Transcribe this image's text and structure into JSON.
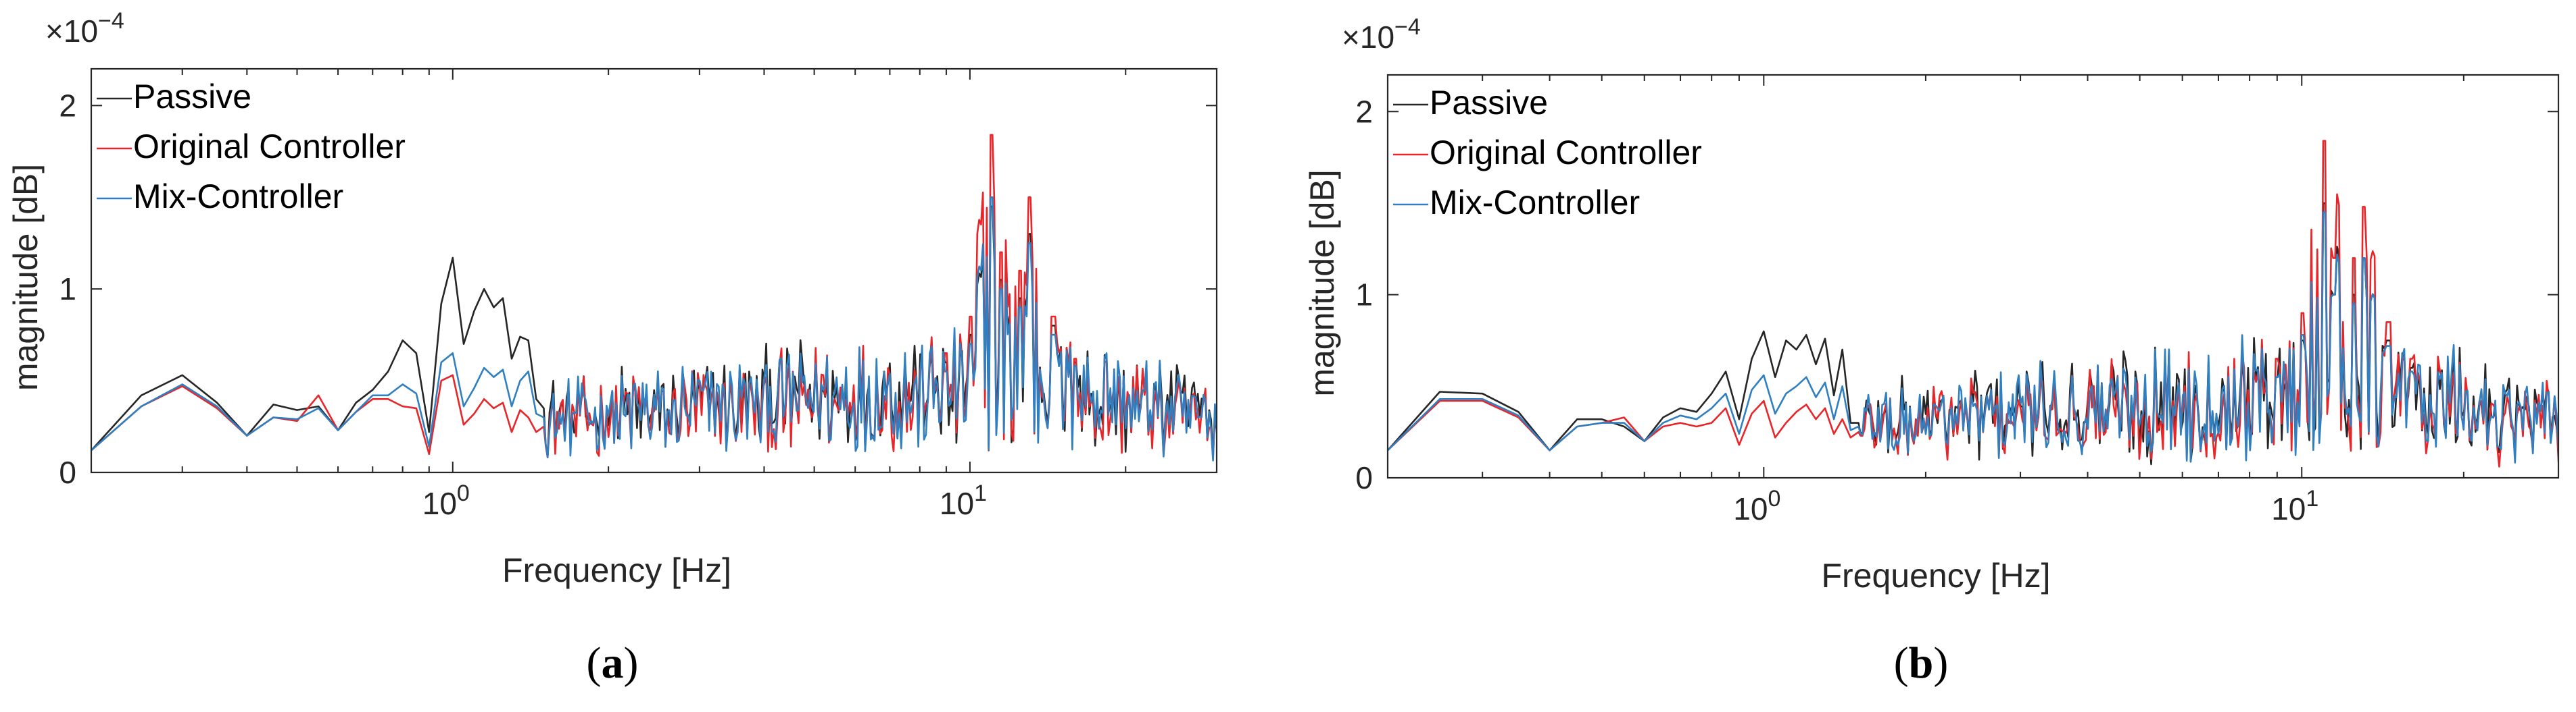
{
  "chart_data": [
    {
      "type": "line",
      "panel": "a",
      "caption_open": "(",
      "caption_letter": "a",
      "caption_close": ")",
      "xscale": "log",
      "xlim": [
        0.2,
        30
      ],
      "ylim": [
        0,
        2.2
      ],
      "y_exponent": "×10",
      "y_exponent_power": "−4",
      "xlabel": "Frequency [Hz]",
      "ylabel": "magnitude [dB]",
      "x_ticks": [
        {
          "value": 1,
          "base": "10",
          "power": "0"
        },
        {
          "value": 10,
          "base": "10",
          "power": "1"
        }
      ],
      "y_ticks": [
        {
          "value": 0,
          "label": "0"
        },
        {
          "value": 1,
          "label": "1"
        },
        {
          "value": 2,
          "label": "2"
        }
      ],
      "legend_position": "top-left",
      "colors": {
        "Passive": "#262626",
        "Original Controller": "#e8262a",
        "Mix-Controller": "#2f7fc1"
      },
      "series": [
        {
          "name": "Passive",
          "low_band": [
            [
              0.2,
              0.12
            ],
            [
              0.25,
              0.42
            ],
            [
              0.3,
              0.53
            ],
            [
              0.35,
              0.38
            ],
            [
              0.4,
              0.2
            ],
            [
              0.45,
              0.37
            ],
            [
              0.5,
              0.34
            ],
            [
              0.55,
              0.36
            ],
            [
              0.6,
              0.23
            ],
            [
              0.65,
              0.38
            ],
            [
              0.7,
              0.45
            ],
            [
              0.75,
              0.55
            ],
            [
              0.8,
              0.72
            ],
            [
              0.85,
              0.65
            ],
            [
              0.9,
              0.22
            ],
            [
              0.95,
              0.92
            ],
            [
              1.0,
              1.17
            ],
            [
              1.05,
              0.7
            ],
            [
              1.1,
              0.88
            ],
            [
              1.15,
              1.0
            ],
            [
              1.2,
              0.9
            ],
            [
              1.25,
              0.95
            ],
            [
              1.3,
              0.62
            ],
            [
              1.35,
              0.74
            ],
            [
              1.4,
              0.72
            ],
            [
              1.45,
              0.4
            ],
            [
              1.5,
              0.35
            ]
          ],
          "high_band_level": 0.3,
          "peaks": [
            [
              9.0,
              0.6
            ],
            [
              10.0,
              0.75
            ],
            [
              11.0,
              1.45
            ],
            [
              11.5,
              1.05
            ],
            [
              12.5,
              0.95
            ],
            [
              13.0,
              1.3
            ],
            [
              14.5,
              0.8
            ],
            [
              16.0,
              0.6
            ]
          ]
        },
        {
          "name": "Original Controller",
          "low_band": [
            [
              0.2,
              0.12
            ],
            [
              0.25,
              0.36
            ],
            [
              0.3,
              0.47
            ],
            [
              0.35,
              0.35
            ],
            [
              0.4,
              0.2
            ],
            [
              0.45,
              0.3
            ],
            [
              0.5,
              0.28
            ],
            [
              0.55,
              0.42
            ],
            [
              0.6,
              0.23
            ],
            [
              0.65,
              0.33
            ],
            [
              0.7,
              0.4
            ],
            [
              0.75,
              0.4
            ],
            [
              0.8,
              0.36
            ],
            [
              0.85,
              0.35
            ],
            [
              0.9,
              0.1
            ],
            [
              0.95,
              0.5
            ],
            [
              1.0,
              0.53
            ],
            [
              1.05,
              0.26
            ],
            [
              1.1,
              0.32
            ],
            [
              1.15,
              0.4
            ],
            [
              1.2,
              0.35
            ],
            [
              1.25,
              0.38
            ],
            [
              1.3,
              0.22
            ],
            [
              1.35,
              0.34
            ],
            [
              1.4,
              0.3
            ],
            [
              1.45,
              0.22
            ],
            [
              1.5,
              0.25
            ]
          ],
          "high_band_level": 0.28,
          "peaks": [
            [
              9.0,
              0.65
            ],
            [
              10.0,
              0.85
            ],
            [
              11.0,
              1.84
            ],
            [
              11.5,
              1.2
            ],
            [
              12.5,
              1.1
            ],
            [
              13.0,
              1.5
            ],
            [
              14.5,
              0.85
            ],
            [
              16.0,
              0.62
            ]
          ]
        },
        {
          "name": "Mix-Controller",
          "low_band": [
            [
              0.2,
              0.12
            ],
            [
              0.25,
              0.36
            ],
            [
              0.3,
              0.48
            ],
            [
              0.35,
              0.36
            ],
            [
              0.4,
              0.2
            ],
            [
              0.45,
              0.3
            ],
            [
              0.5,
              0.29
            ],
            [
              0.55,
              0.35
            ],
            [
              0.6,
              0.23
            ],
            [
              0.65,
              0.33
            ],
            [
              0.7,
              0.42
            ],
            [
              0.75,
              0.42
            ],
            [
              0.8,
              0.48
            ],
            [
              0.85,
              0.43
            ],
            [
              0.9,
              0.14
            ],
            [
              0.95,
              0.6
            ],
            [
              1.0,
              0.65
            ],
            [
              1.05,
              0.36
            ],
            [
              1.1,
              0.46
            ],
            [
              1.15,
              0.57
            ],
            [
              1.2,
              0.52
            ],
            [
              1.25,
              0.56
            ],
            [
              1.3,
              0.36
            ],
            [
              1.35,
              0.5
            ],
            [
              1.4,
              0.55
            ],
            [
              1.45,
              0.32
            ],
            [
              1.5,
              0.3
            ]
          ],
          "high_band_level": 0.29,
          "peaks": [
            [
              9.0,
              0.55
            ],
            [
              10.0,
              0.7
            ],
            [
              11.0,
              1.5
            ],
            [
              11.5,
              1.0
            ],
            [
              12.5,
              0.9
            ],
            [
              13.0,
              1.25
            ],
            [
              14.5,
              0.75
            ],
            [
              16.0,
              0.58
            ]
          ]
        }
      ]
    },
    {
      "type": "line",
      "panel": "b",
      "caption_open": "(",
      "caption_letter": "b",
      "caption_close": ")",
      "xscale": "log",
      "xlim": [
        0.2,
        30
      ],
      "ylim": [
        0,
        2.2
      ],
      "y_exponent": "×10",
      "y_exponent_power": "−4",
      "xlabel": "Frequency [Hz]",
      "ylabel": "magnitude [dB]",
      "x_ticks": [
        {
          "value": 1,
          "base": "10",
          "power": "0"
        },
        {
          "value": 10,
          "base": "10",
          "power": "1"
        }
      ],
      "y_ticks": [
        {
          "value": 0,
          "label": "0"
        },
        {
          "value": 1,
          "label": "1"
        },
        {
          "value": 2,
          "label": "2"
        }
      ],
      "legend_position": "top-left",
      "colors": {
        "Passive": "#262626",
        "Original Controller": "#e8262a",
        "Mix-Controller": "#2f7fc1"
      },
      "series": [
        {
          "name": "Passive",
          "low_band": [
            [
              0.2,
              0.15
            ],
            [
              0.25,
              0.47
            ],
            [
              0.3,
              0.46
            ],
            [
              0.35,
              0.36
            ],
            [
              0.4,
              0.15
            ],
            [
              0.45,
              0.32
            ],
            [
              0.5,
              0.32
            ],
            [
              0.55,
              0.28
            ],
            [
              0.6,
              0.2
            ],
            [
              0.65,
              0.33
            ],
            [
              0.7,
              0.38
            ],
            [
              0.75,
              0.36
            ],
            [
              0.8,
              0.46
            ],
            [
              0.85,
              0.58
            ],
            [
              0.9,
              0.32
            ],
            [
              0.95,
              0.65
            ],
            [
              1.0,
              0.8
            ],
            [
              1.05,
              0.55
            ],
            [
              1.1,
              0.75
            ],
            [
              1.15,
              0.7
            ],
            [
              1.2,
              0.78
            ],
            [
              1.25,
              0.62
            ],
            [
              1.3,
              0.76
            ],
            [
              1.35,
              0.45
            ],
            [
              1.4,
              0.7
            ],
            [
              1.45,
              0.3
            ],
            [
              1.5,
              0.3
            ]
          ],
          "high_band_level": 0.3,
          "peaks": [
            [
              9.0,
              0.55
            ],
            [
              10.0,
              0.75
            ],
            [
              11.0,
              1.5
            ],
            [
              11.5,
              1.0
            ],
            [
              12.5,
              1.0
            ],
            [
              13.0,
              1.2
            ],
            [
              14.5,
              0.75
            ],
            [
              16.0,
              0.6
            ]
          ]
        },
        {
          "name": "Original Controller",
          "low_band": [
            [
              0.2,
              0.15
            ],
            [
              0.25,
              0.42
            ],
            [
              0.3,
              0.42
            ],
            [
              0.35,
              0.33
            ],
            [
              0.4,
              0.15
            ],
            [
              0.45,
              0.28
            ],
            [
              0.5,
              0.3
            ],
            [
              0.55,
              0.33
            ],
            [
              0.6,
              0.2
            ],
            [
              0.65,
              0.28
            ],
            [
              0.7,
              0.3
            ],
            [
              0.75,
              0.28
            ],
            [
              0.8,
              0.3
            ],
            [
              0.85,
              0.38
            ],
            [
              0.9,
              0.18
            ],
            [
              0.95,
              0.35
            ],
            [
              1.0,
              0.42
            ],
            [
              1.05,
              0.22
            ],
            [
              1.1,
              0.3
            ],
            [
              1.15,
              0.36
            ],
            [
              1.2,
              0.4
            ],
            [
              1.25,
              0.32
            ],
            [
              1.3,
              0.38
            ],
            [
              1.35,
              0.24
            ],
            [
              1.4,
              0.32
            ],
            [
              1.45,
              0.22
            ],
            [
              1.5,
              0.25
            ]
          ],
          "high_band_level": 0.28,
          "peaks": [
            [
              9.0,
              0.65
            ],
            [
              10.0,
              0.9
            ],
            [
              11.0,
              1.84
            ],
            [
              11.5,
              1.2
            ],
            [
              12.5,
              1.2
            ],
            [
              13.0,
              1.48
            ],
            [
              14.5,
              0.85
            ],
            [
              16.0,
              0.65
            ]
          ]
        },
        {
          "name": "Mix-Controller",
          "low_band": [
            [
              0.2,
              0.15
            ],
            [
              0.25,
              0.43
            ],
            [
              0.3,
              0.43
            ],
            [
              0.35,
              0.34
            ],
            [
              0.4,
              0.15
            ],
            [
              0.45,
              0.28
            ],
            [
              0.5,
              0.3
            ],
            [
              0.55,
              0.3
            ],
            [
              0.6,
              0.2
            ],
            [
              0.65,
              0.3
            ],
            [
              0.7,
              0.34
            ],
            [
              0.75,
              0.32
            ],
            [
              0.8,
              0.38
            ],
            [
              0.85,
              0.46
            ],
            [
              0.9,
              0.24
            ],
            [
              0.95,
              0.48
            ],
            [
              1.0,
              0.56
            ],
            [
              1.05,
              0.35
            ],
            [
              1.1,
              0.46
            ],
            [
              1.15,
              0.5
            ],
            [
              1.2,
              0.55
            ],
            [
              1.25,
              0.44
            ],
            [
              1.3,
              0.52
            ],
            [
              1.35,
              0.32
            ],
            [
              1.4,
              0.5
            ],
            [
              1.45,
              0.26
            ],
            [
              1.5,
              0.28
            ]
          ],
          "high_band_level": 0.29,
          "peaks": [
            [
              9.0,
              0.55
            ],
            [
              10.0,
              0.78
            ],
            [
              11.0,
              1.45
            ],
            [
              11.5,
              1.0
            ],
            [
              12.5,
              0.95
            ],
            [
              13.0,
              1.2
            ],
            [
              14.5,
              0.72
            ],
            [
              16.0,
              0.58
            ]
          ]
        }
      ]
    }
  ]
}
